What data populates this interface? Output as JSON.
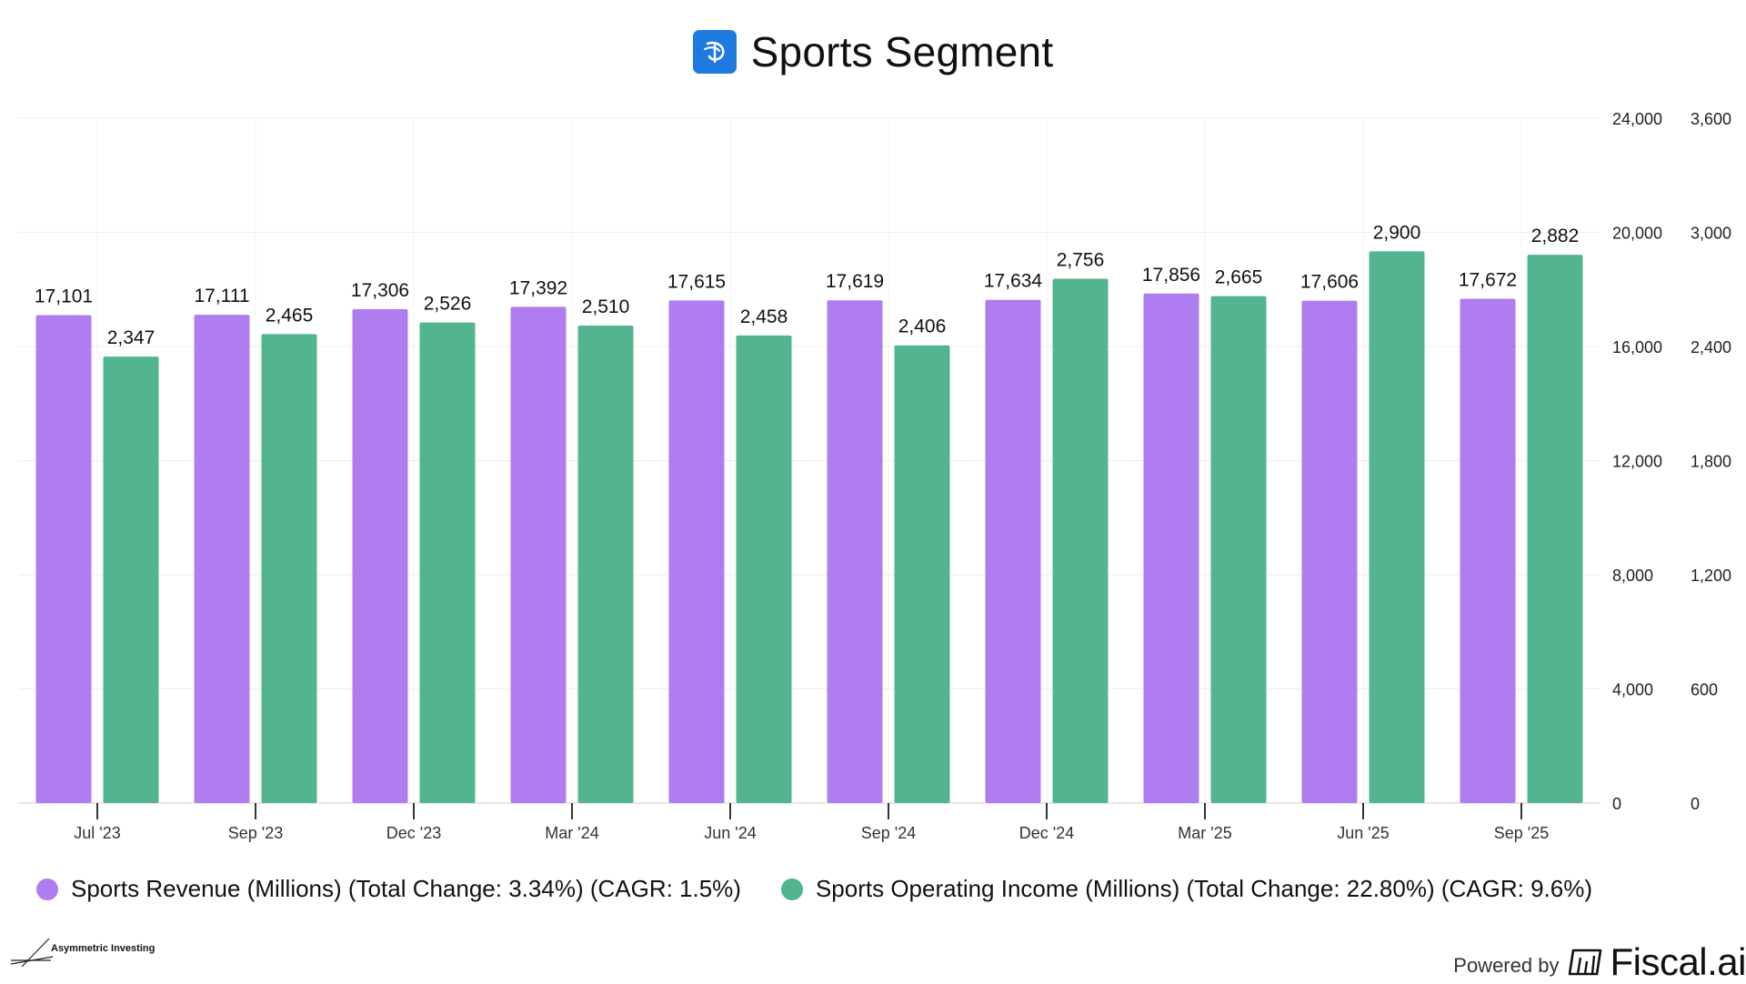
{
  "header": {
    "title": "Sports Segment",
    "logo_icon": "disney-plus-logo-icon"
  },
  "chart_data": {
    "type": "bar",
    "title": "Sports Segment",
    "categories": [
      "Jul '23",
      "Sep '23",
      "Dec '23",
      "Mar '24",
      "Jun '24",
      "Sep '24",
      "Dec '24",
      "Mar '25",
      "Jun '25",
      "Sep '25"
    ],
    "series": [
      {
        "name": "Sports Revenue (Millions)",
        "axis": "left",
        "color": "#af7def",
        "values": [
          17101,
          17111,
          17306,
          17392,
          17615,
          17619,
          17634,
          17856,
          17606,
          17672
        ],
        "labels": [
          "17,101",
          "17,111",
          "17,306",
          "17,392",
          "17,615",
          "17,619",
          "17,634",
          "17,856",
          "17,606",
          "17,672"
        ]
      },
      {
        "name": "Sports Operating Income (Millions)",
        "axis": "right",
        "color": "#52b58f",
        "values": [
          2347,
          2465,
          2526,
          2510,
          2458,
          2406,
          2756,
          2665,
          2900,
          2882
        ],
        "labels": [
          "2,347",
          "2,465",
          "2,526",
          "2,510",
          "2,458",
          "2,406",
          "2,756",
          "2,665",
          "2,900",
          "2,882"
        ]
      }
    ],
    "left_axis": {
      "ylim": [
        0,
        24000
      ],
      "ticks": [
        0,
        4000,
        8000,
        12000,
        16000,
        20000,
        24000
      ],
      "tick_labels": [
        "0",
        "4,000",
        "8,000",
        "12,000",
        "16,000",
        "20,000",
        "24,000"
      ]
    },
    "right_axis": {
      "ylim": [
        0,
        3600
      ],
      "ticks": [
        0,
        600,
        1200,
        1800,
        2400,
        3000,
        3600
      ],
      "tick_labels": [
        "0",
        "600",
        "1,200",
        "1,800",
        "2,400",
        "3,000",
        "3,600"
      ]
    },
    "grid": true,
    "legend_position": "bottom-left"
  },
  "legend": {
    "items": [
      {
        "label": "Sports Revenue (Millions) (Total Change: 3.34%) (CAGR: 1.5%)",
        "color": "#af7def"
      },
      {
        "label": "Sports Operating Income (Millions) (Total Change: 22.80%) (CAGR: 9.6%)",
        "color": "#52b58f"
      }
    ]
  },
  "footer": {
    "left_brand": "Asymmetric Investing",
    "powered_by": "Powered by",
    "brand": "Fiscal.ai"
  }
}
